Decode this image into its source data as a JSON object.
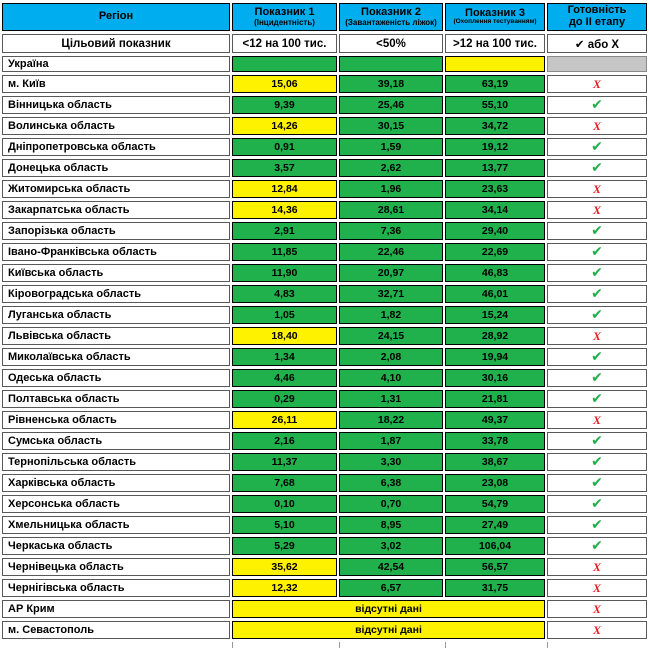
{
  "colors": {
    "header_cyan": "#00AEEF",
    "cell_green": "#21B14C",
    "cell_yellow": "#FFF200",
    "cell_gray": "#C6C6C6",
    "check_green": "#1FAF4B",
    "cross_red": "#EC1C24"
  },
  "icons": {
    "check": "✔",
    "cross": "Х"
  },
  "table": {
    "header": {
      "region": "Регіон",
      "indicator1_title": "Показник 1",
      "indicator1_sub": "(Інцидентність)",
      "indicator2_title": "Показник 2",
      "indicator2_sub": "(Завантаженість ліжок)",
      "indicator3_title": "Показник 3",
      "indicator3_sub": "(Охоплення тестуванням)",
      "readiness_line1": "Готовність",
      "readiness_line2": "до ІІ етапу"
    },
    "target_row": {
      "label": "Цільовий показник",
      "indicator1": "<12 на 100 тис.",
      "indicator2": "<50%",
      "indicator3": ">12 на 100 тис.",
      "readiness": "✔ або Х"
    },
    "rows": [
      {
        "name": "Україна",
        "v1": "",
        "v1bg": "green",
        "v2": "",
        "v2bg": "green",
        "v3": "",
        "v3bg": "yellow",
        "status": "gray"
      },
      {
        "name": "м. Київ",
        "v1": "15,06",
        "v1bg": "yellow",
        "v2": "39,18",
        "v2bg": "green",
        "v3": "63,19",
        "v3bg": "green",
        "status": "cross"
      },
      {
        "name": "Вінницька область",
        "v1": "9,39",
        "v1bg": "green",
        "v2": "25,46",
        "v2bg": "green",
        "v3": "55,10",
        "v3bg": "green",
        "status": "check"
      },
      {
        "name": "Волинська область",
        "v1": "14,26",
        "v1bg": "yellow",
        "v2": "30,15",
        "v2bg": "green",
        "v3": "34,72",
        "v3bg": "green",
        "status": "cross"
      },
      {
        "name": "Дніпропетровська область",
        "v1": "0,91",
        "v1bg": "green",
        "v2": "1,59",
        "v2bg": "green",
        "v3": "19,12",
        "v3bg": "green",
        "status": "check"
      },
      {
        "name": "Донецька область",
        "v1": "3,57",
        "v1bg": "green",
        "v2": "2,62",
        "v2bg": "green",
        "v3": "13,77",
        "v3bg": "green",
        "status": "check"
      },
      {
        "name": "Житомирська область",
        "v1": "12,84",
        "v1bg": "yellow",
        "v2": "1,96",
        "v2bg": "green",
        "v3": "23,63",
        "v3bg": "green",
        "status": "cross"
      },
      {
        "name": "Закарпатська область",
        "v1": "14,36",
        "v1bg": "yellow",
        "v2": "28,61",
        "v2bg": "green",
        "v3": "34,14",
        "v3bg": "green",
        "status": "cross"
      },
      {
        "name": "Запорізька область",
        "v1": "2,91",
        "v1bg": "green",
        "v2": "7,36",
        "v2bg": "green",
        "v3": "29,40",
        "v3bg": "green",
        "status": "check"
      },
      {
        "name": "Івано-Франківська область",
        "v1": "11,85",
        "v1bg": "green",
        "v2": "22,46",
        "v2bg": "green",
        "v3": "22,69",
        "v3bg": "green",
        "status": "check"
      },
      {
        "name": "Київська область",
        "v1": "11,90",
        "v1bg": "green",
        "v2": "20,97",
        "v2bg": "green",
        "v3": "46,83",
        "v3bg": "green",
        "status": "check"
      },
      {
        "name": "Кіровоградська область",
        "v1": "4,83",
        "v1bg": "green",
        "v2": "32,71",
        "v2bg": "green",
        "v3": "46,01",
        "v3bg": "green",
        "status": "check"
      },
      {
        "name": "Луганська область",
        "v1": "1,05",
        "v1bg": "green",
        "v2": "1,82",
        "v2bg": "green",
        "v3": "15,24",
        "v3bg": "green",
        "status": "check"
      },
      {
        "name": "Львівська область",
        "v1": "18,40",
        "v1bg": "yellow",
        "v2": "24,15",
        "v2bg": "green",
        "v3": "28,92",
        "v3bg": "green",
        "status": "cross"
      },
      {
        "name": "Миколаївська область",
        "v1": "1,34",
        "v1bg": "green",
        "v2": "2,08",
        "v2bg": "green",
        "v3": "19,94",
        "v3bg": "green",
        "status": "check"
      },
      {
        "name": "Одеська область",
        "v1": "4,46",
        "v1bg": "green",
        "v2": "4,10",
        "v2bg": "green",
        "v3": "30,16",
        "v3bg": "green",
        "status": "check"
      },
      {
        "name": "Полтавська область",
        "v1": "0,29",
        "v1bg": "green",
        "v2": "1,31",
        "v2bg": "green",
        "v3": "21,81",
        "v3bg": "green",
        "status": "check"
      },
      {
        "name": "Рівненська область",
        "v1": "26,11",
        "v1bg": "yellow",
        "v2": "18,22",
        "v2bg": "green",
        "v3": "49,37",
        "v3bg": "green",
        "status": "cross"
      },
      {
        "name": "Сумська область",
        "v1": "2,16",
        "v1bg": "green",
        "v2": "1,87",
        "v2bg": "green",
        "v3": "33,78",
        "v3bg": "green",
        "status": "check"
      },
      {
        "name": "Тернопільська область",
        "v1": "11,37",
        "v1bg": "green",
        "v2": "3,30",
        "v2bg": "green",
        "v3": "38,67",
        "v3bg": "green",
        "status": "check"
      },
      {
        "name": "Харківська область",
        "v1": "7,68",
        "v1bg": "green",
        "v2": "6,38",
        "v2bg": "green",
        "v3": "23,08",
        "v3bg": "green",
        "status": "check"
      },
      {
        "name": "Херсонська область",
        "v1": "0,10",
        "v1bg": "green",
        "v2": "0,70",
        "v2bg": "green",
        "v3": "54,79",
        "v3bg": "green",
        "status": "check"
      },
      {
        "name": "Хмельницька область",
        "v1": "5,10",
        "v1bg": "green",
        "v2": "8,95",
        "v2bg": "green",
        "v3": "27,49",
        "v3bg": "green",
        "status": "check"
      },
      {
        "name": "Черкаська область",
        "v1": "5,29",
        "v1bg": "green",
        "v2": "3,02",
        "v2bg": "green",
        "v3": "106,04",
        "v3bg": "green",
        "status": "check"
      },
      {
        "name": "Чернівецька область",
        "v1": "35,62",
        "v1bg": "yellow",
        "v2": "42,54",
        "v2bg": "green",
        "v3": "56,57",
        "v3bg": "green",
        "status": "cross"
      },
      {
        "name": "Чернігівська область",
        "v1": "12,32",
        "v1bg": "yellow",
        "v2": "6,57",
        "v2bg": "green",
        "v3": "31,75",
        "v3bg": "green",
        "status": "cross"
      },
      {
        "name": "АР Крим",
        "merged": "відсутні дані",
        "status": "cross"
      },
      {
        "name": "м. Севастополь",
        "merged": "відсутні дані",
        "status": "cross"
      }
    ]
  }
}
